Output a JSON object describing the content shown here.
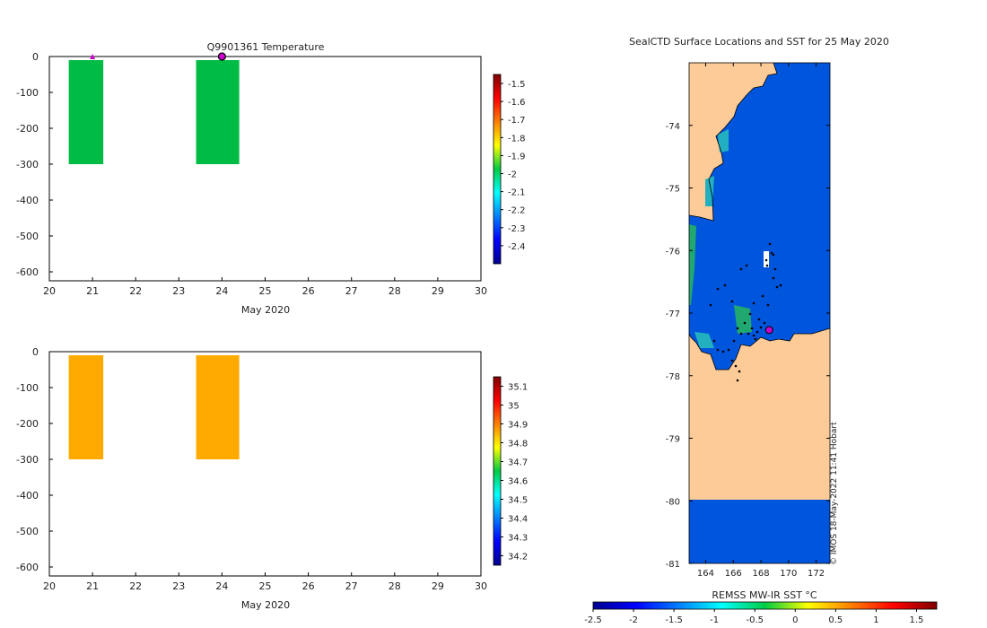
{
  "colors": {
    "temp_bar": "#00bb44",
    "sal_bar": "#ffaa00",
    "land": "#fccb97",
    "ocean": "#0055dd",
    "marker": "#cc00cc",
    "axis": "#000000"
  },
  "chart_data": [
    {
      "type": "bar",
      "id": "temperature_profile",
      "title": "Q9901361  Temperature",
      "xlabel": "May 2020",
      "ylabel": "",
      "xlim": [
        20,
        30
      ],
      "ylim": [
        -625,
        0
      ],
      "xticks": [
        "20",
        "21",
        "22",
        "23",
        "24",
        "25",
        "26",
        "27",
        "28",
        "29",
        "30"
      ],
      "yticks": [
        "0",
        "-100",
        "-200",
        "-300",
        "-400",
        "-500",
        "-600"
      ],
      "bars": [
        {
          "x0": 20.45,
          "x1": 21.25,
          "top": -10,
          "bottom": -300,
          "value": -2.05
        },
        {
          "x0": 23.4,
          "x1": 24.4,
          "top": -10,
          "bottom": -300,
          "value": -2.05
        }
      ],
      "markers": [
        {
          "shape": "triangle",
          "x": 21.0,
          "y": 0
        },
        {
          "shape": "circle",
          "x": 24.0,
          "y": 0
        }
      ],
      "colorbar": {
        "ticks": [
          "-1.5",
          "-1.6",
          "-1.7",
          "-1.8",
          "-1.9",
          "-2",
          "-2.1",
          "-2.2",
          "-2.3",
          "-2.4"
        ],
        "range": [
          -2.5,
          -1.45
        ]
      }
    },
    {
      "type": "bar",
      "id": "salinity_profile",
      "title": "",
      "xlabel": "May 2020",
      "ylabel": "",
      "xlim": [
        20,
        30
      ],
      "ylim": [
        -625,
        0
      ],
      "xticks": [
        "20",
        "21",
        "22",
        "23",
        "24",
        "25",
        "26",
        "27",
        "28",
        "29",
        "30"
      ],
      "yticks": [
        "0",
        "-100",
        "-200",
        "-300",
        "-400",
        "-500",
        "-600"
      ],
      "bars": [
        {
          "x0": 20.45,
          "x1": 21.25,
          "top": -10,
          "bottom": -300,
          "value": 34.95
        },
        {
          "x0": 23.4,
          "x1": 24.4,
          "top": -10,
          "bottom": -300,
          "value": 34.95
        }
      ],
      "colorbar": {
        "ticks": [
          "35.1",
          "35",
          "34.9",
          "34.8",
          "34.7",
          "34.6",
          "34.5",
          "34.4",
          "34.3",
          "34.2"
        ],
        "range": [
          34.15,
          35.15
        ]
      }
    },
    {
      "type": "heatmap",
      "id": "sst_map",
      "title": "SealCTD Surface Locations and SST for 25 May 2020",
      "lon_range": [
        162.8,
        173.0
      ],
      "lat_range": [
        -81.0,
        -73.0
      ],
      "xticks": [
        "164",
        "166",
        "168",
        "170",
        "172"
      ],
      "yticks": [
        "-74",
        "-75",
        "-76",
        "-77",
        "-78",
        "-79",
        "-80",
        "-81"
      ],
      "colorbar": {
        "label": "REMSS MW-IR SST °C",
        "ticks": [
          "-2.5",
          "-2",
          "-1.5",
          "-1",
          "-0.5",
          "0",
          "0.5",
          "1",
          "1.5"
        ],
        "range": [
          -2.5,
          1.75
        ]
      },
      "current_position": {
        "lon": 168.6,
        "lat": -77.27
      },
      "credit": "© IMOS 18-May-2022 11:41 Hobart"
    }
  ]
}
